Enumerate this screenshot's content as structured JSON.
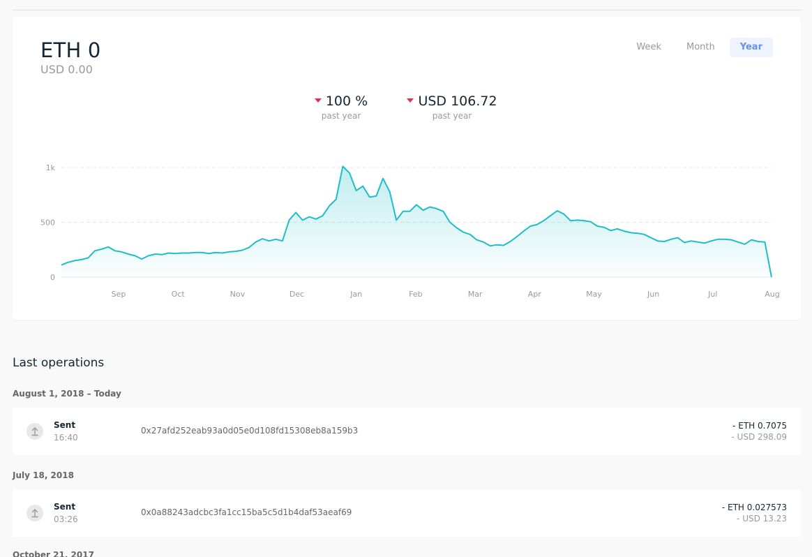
{
  "balance": {
    "main": "ETH 0",
    "countervalue": "USD 0.00"
  },
  "period_switch": {
    "options": [
      "Week",
      "Month",
      "Year"
    ],
    "selected": "Year"
  },
  "stats": [
    {
      "value": "100 %",
      "label": "past year",
      "trend": "down"
    },
    {
      "value": "USD 106.72",
      "label": "past year",
      "trend": "down"
    }
  ],
  "colors": {
    "accent": "#1ebdc8",
    "negative": "#ea2e49",
    "selected": "#6490f1"
  },
  "chart_data": {
    "type": "area",
    "x_tick_labels": [
      "Sep",
      "Oct",
      "Nov",
      "Dec",
      "Jan",
      "Feb",
      "Mar",
      "Apr",
      "May",
      "Jun",
      "Jul",
      "Aug"
    ],
    "y_tick_labels": [
      "0",
      "500",
      "1k"
    ],
    "ylim": [
      0,
      1000
    ],
    "grid": "horizontal-dashed",
    "series": [
      {
        "values": [
          110,
          135,
          150,
          160,
          175,
          240,
          255,
          275,
          240,
          230,
          210,
          195,
          165,
          195,
          210,
          205,
          220,
          215,
          220,
          220,
          225,
          225,
          215,
          225,
          220,
          230,
          235,
          245,
          270,
          320,
          350,
          330,
          345,
          330,
          520,
          590,
          520,
          550,
          530,
          560,
          650,
          710,
          1010,
          950,
          790,
          830,
          730,
          740,
          900,
          780,
          520,
          600,
          600,
          660,
          610,
          640,
          625,
          600,
          500,
          450,
          410,
          390,
          340,
          320,
          285,
          295,
          290,
          325,
          370,
          420,
          465,
          480,
          515,
          560,
          605,
          575,
          515,
          520,
          515,
          505,
          465,
          455,
          425,
          440,
          420,
          405,
          400,
          390,
          360,
          330,
          325,
          345,
          360,
          315,
          330,
          320,
          310,
          330,
          345,
          345,
          340,
          320,
          300,
          340,
          325,
          320,
          0
        ]
      }
    ]
  },
  "operations": {
    "title": "Last operations",
    "groups": [
      {
        "date": "August 1, 2018 – Today",
        "items": [
          {
            "type": "Sent",
            "time": "16:40",
            "hash": "0x27afd252eab93a0d05e0d108fd15308eb8a159b3",
            "amount": "- ETH 0.7075",
            "countervalue": "- USD 298.09"
          }
        ]
      },
      {
        "date": "July 18, 2018",
        "items": [
          {
            "type": "Sent",
            "time": "03:26",
            "hash": "0x0a88243adcbc3fa1cc15ba5c5d1b4daf53aeaf69",
            "amount": "- ETH 0.027573",
            "countervalue": "- USD 13.23"
          }
        ]
      },
      {
        "date": "October 21, 2017",
        "items": []
      }
    ]
  }
}
